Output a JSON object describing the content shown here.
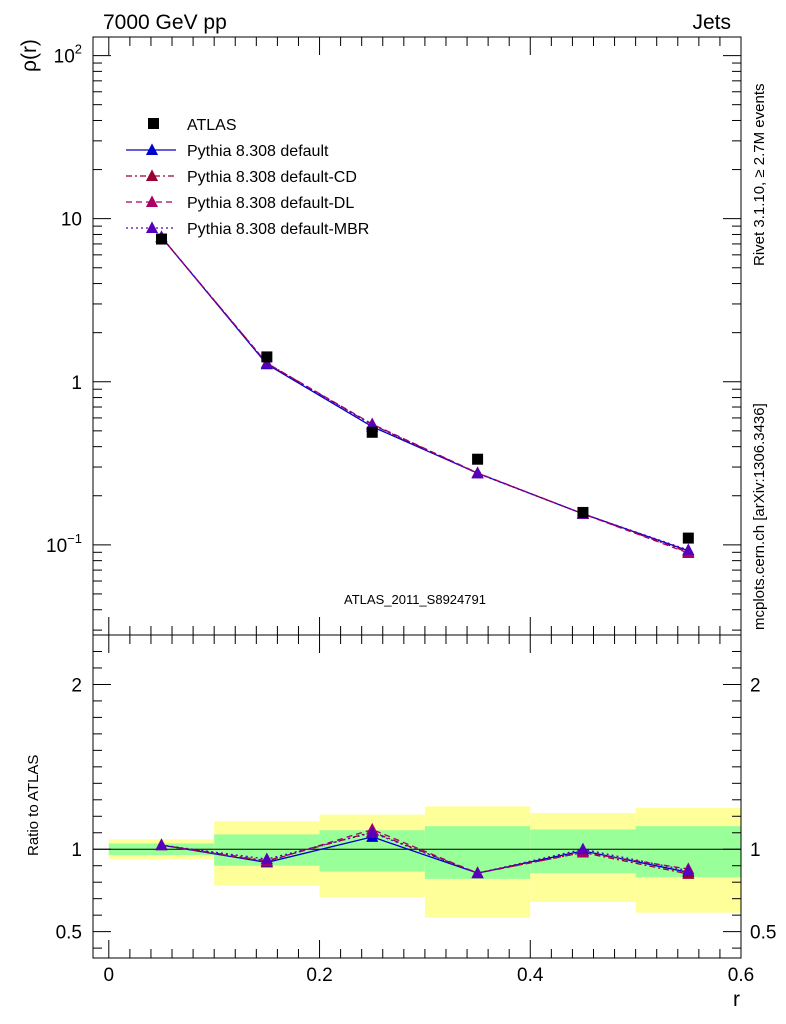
{
  "header": {
    "left_title": "7000 GeV pp",
    "right_title": "Jets"
  },
  "side_text": {
    "rivet": "Rivet 3.1.10, ≥ 2.7M events",
    "mcplots": "mcplots.cern.ch [arXiv:1306.3436]"
  },
  "chart_data": [
    {
      "type": "line",
      "panel": "main",
      "ylabel": "ρ(r)",
      "y_scale": "log",
      "ylim": [
        0.028,
        130
      ],
      "xlim": [
        -0.015,
        0.6
      ],
      "watermark": "ATLAS_2011_S8924791",
      "yticks": [
        {
          "value": 0.1,
          "base": "10",
          "exp": "−1"
        },
        {
          "value": 1,
          "label": "1"
        },
        {
          "value": 10,
          "label": "10"
        },
        {
          "value": 100,
          "base": "10",
          "exp": "2"
        }
      ],
      "x": [
        0.05,
        0.15,
        0.25,
        0.35,
        0.45,
        0.55
      ],
      "data": {
        "name": "ATLAS",
        "values": [
          7.5,
          1.42,
          0.49,
          0.335,
          0.158,
          0.11
        ]
      },
      "series": [
        {
          "name": "Pythia 8.308 default",
          "color": "#0000cc",
          "dash": "solid",
          "values": [
            7.7,
            1.28,
            0.53,
            0.275,
            0.155,
            0.092
          ]
        },
        {
          "name": "Pythia 8.308 default-CD",
          "color": "#990033",
          "dash": "dashdot",
          "values": [
            7.7,
            1.3,
            0.545,
            0.275,
            0.155,
            0.09
          ]
        },
        {
          "name": "Pythia 8.308 default-DL",
          "color": "#aa0066",
          "dash": "dash",
          "values": [
            7.7,
            1.3,
            0.55,
            0.276,
            0.155,
            0.089
          ]
        },
        {
          "name": "Pythia 8.308 default-MBR",
          "color": "#5500bb",
          "dash": "dot",
          "values": [
            7.7,
            1.29,
            0.545,
            0.274,
            0.155,
            0.093
          ]
        }
      ]
    },
    {
      "type": "line",
      "panel": "ratio",
      "ylabel": "Ratio to ATLAS",
      "xlabel": "r",
      "ylim": [
        0.34,
        2.3
      ],
      "xlim": [
        -0.015,
        0.6
      ],
      "xticks": [
        "0",
        "0.2",
        "0.4",
        "0.6"
      ],
      "yticks": [
        "0.5",
        "1",
        "2"
      ],
      "bands": [
        {
          "x0": 0.0,
          "x1": 0.1,
          "green": [
            0.965,
            1.035
          ],
          "yellow": [
            0.94,
            1.06
          ]
        },
        {
          "x0": 0.1,
          "x1": 0.2,
          "green": [
            0.9,
            1.09
          ],
          "yellow": [
            0.78,
            1.17
          ]
        },
        {
          "x0": 0.2,
          "x1": 0.3,
          "green": [
            0.865,
            1.115
          ],
          "yellow": [
            0.71,
            1.21
          ]
        },
        {
          "x0": 0.3,
          "x1": 0.4,
          "green": [
            0.82,
            1.14
          ],
          "yellow": [
            0.585,
            1.26
          ]
        },
        {
          "x0": 0.4,
          "x1": 0.5,
          "green": [
            0.855,
            1.12
          ],
          "yellow": [
            0.68,
            1.22
          ]
        },
        {
          "x0": 0.5,
          "x1": 0.6,
          "green": [
            0.83,
            1.14
          ],
          "yellow": [
            0.615,
            1.25
          ]
        }
      ],
      "x": [
        0.05,
        0.15,
        0.25,
        0.35,
        0.45,
        0.55
      ],
      "series": [
        {
          "name": "Pythia 8.308 default",
          "color": "#0000cc",
          "dash": "solid",
          "values": [
            1.025,
            0.92,
            1.075,
            0.855,
            0.99,
            0.86
          ]
        },
        {
          "name": "Pythia 8.308 default-CD",
          "color": "#990033",
          "dash": "dashdot",
          "values": [
            1.025,
            0.93,
            1.105,
            0.855,
            0.98,
            0.85
          ]
        },
        {
          "name": "Pythia 8.308 default-DL",
          "color": "#aa0066",
          "dash": "dash",
          "values": [
            1.025,
            0.925,
            1.12,
            0.855,
            0.98,
            0.88
          ]
        },
        {
          "name": "Pythia 8.308 default-MBR",
          "color": "#5500bb",
          "dash": "dot",
          "values": [
            1.025,
            0.94,
            1.1,
            0.855,
            1.0,
            0.87
          ]
        }
      ]
    }
  ]
}
